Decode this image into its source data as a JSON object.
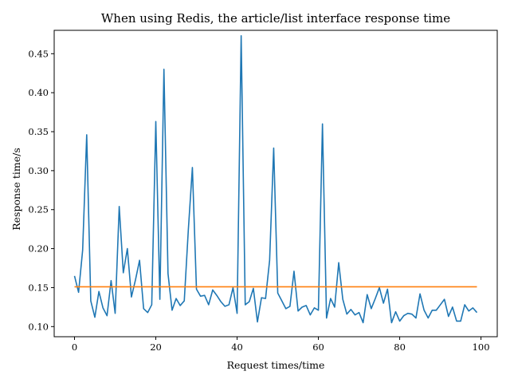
{
  "chart_data": {
    "type": "line",
    "title": "When using Redis, the article/list interface response time",
    "xlabel": "Request times/time",
    "ylabel": "Response time/s",
    "xlim": [
      -5,
      104
    ],
    "ylim": [
      0.087,
      0.48
    ],
    "xticks": [
      0,
      20,
      40,
      60,
      80,
      100
    ],
    "yticks": [
      0.1,
      0.15,
      0.2,
      0.25,
      0.3,
      0.35,
      0.4,
      0.45
    ],
    "grid": false,
    "colors": {
      "series": "#1f77b4",
      "mean": "#ff7f0e"
    },
    "series": [
      {
        "x": [
          0,
          1,
          2,
          3,
          4,
          5,
          6,
          7,
          8,
          9,
          10,
          11,
          12,
          13,
          14,
          15,
          16,
          17,
          18,
          19,
          20,
          21,
          22,
          23,
          24,
          25,
          26,
          27,
          28,
          29,
          30,
          31,
          32,
          33,
          34,
          35,
          36,
          37,
          38,
          39,
          40,
          41,
          42,
          43,
          44,
          45,
          46,
          47,
          48,
          49,
          50,
          51,
          52,
          53,
          54,
          55,
          56,
          57,
          58,
          59,
          60,
          61,
          62,
          63,
          64,
          65,
          66,
          67,
          68,
          69,
          70,
          71,
          72,
          73,
          74,
          75,
          76,
          77,
          78,
          79,
          80,
          81,
          82,
          83,
          84,
          85,
          86,
          87,
          88,
          89,
          90,
          91,
          92,
          93,
          94,
          95,
          96,
          97,
          98,
          99
        ],
        "values": [
          0.165,
          0.144,
          0.198,
          0.346,
          0.133,
          0.112,
          0.145,
          0.124,
          0.114,
          0.159,
          0.117,
          0.254,
          0.169,
          0.2,
          0.138,
          0.16,
          0.185,
          0.123,
          0.118,
          0.128,
          0.363,
          0.135,
          0.43,
          0.168,
          0.121,
          0.136,
          0.127,
          0.133,
          0.224,
          0.304,
          0.148,
          0.139,
          0.14,
          0.128,
          0.147,
          0.14,
          0.132,
          0.126,
          0.128,
          0.15,
          0.117,
          0.473,
          0.128,
          0.132,
          0.149,
          0.106,
          0.137,
          0.136,
          0.185,
          0.329,
          0.143,
          0.133,
          0.123,
          0.126,
          0.171,
          0.12,
          0.125,
          0.127,
          0.115,
          0.124,
          0.121,
          0.36,
          0.111,
          0.136,
          0.125,
          0.182,
          0.135,
          0.116,
          0.122,
          0.115,
          0.118,
          0.105,
          0.141,
          0.123,
          0.136,
          0.15,
          0.13,
          0.148,
          0.105,
          0.119,
          0.107,
          0.114,
          0.117,
          0.116,
          0.111,
          0.142,
          0.121,
          0.111,
          0.121,
          0.121,
          0.128,
          0.135,
          0.113,
          0.125,
          0.107,
          0.107,
          0.128,
          0.12,
          0.124,
          0.118
        ]
      },
      {
        "x": [
          0,
          99
        ],
        "values": [
          0.151,
          0.151
        ]
      }
    ]
  }
}
